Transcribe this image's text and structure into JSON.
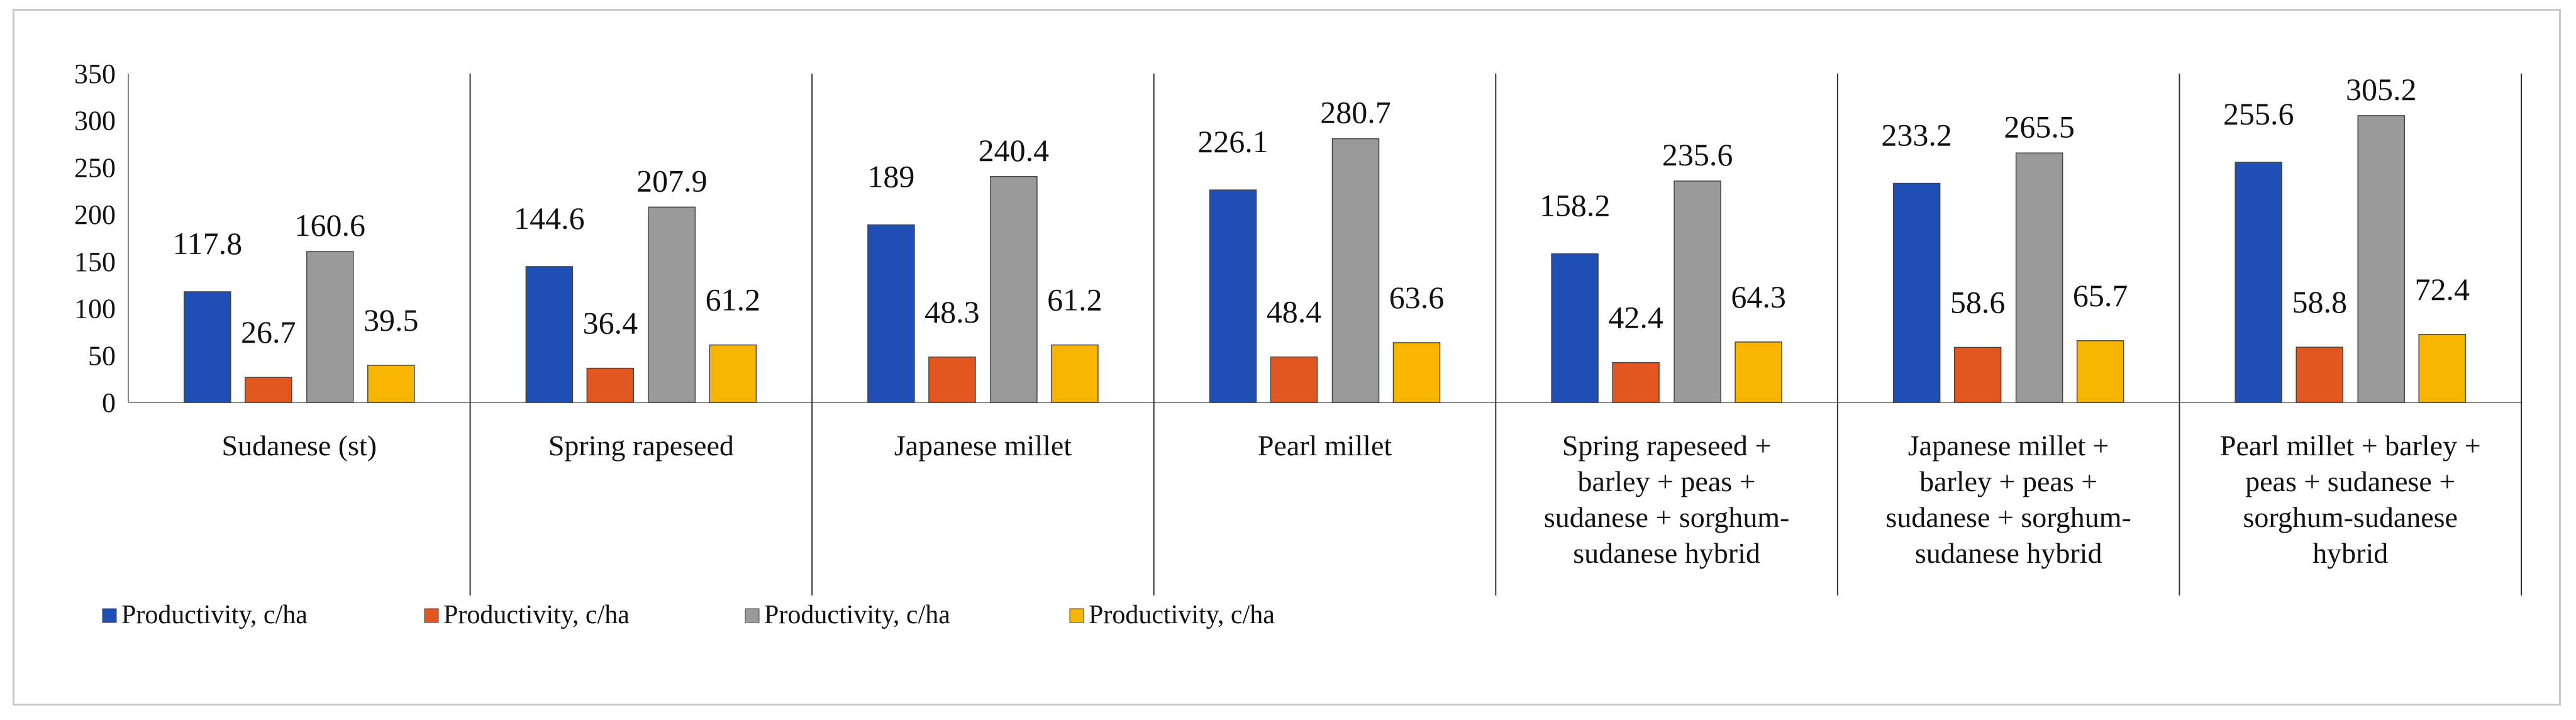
{
  "chart_data": {
    "type": "bar",
    "title": "",
    "xlabel": "",
    "ylabel": "",
    "ylim": [
      0,
      350
    ],
    "yticks": [
      0,
      50,
      100,
      150,
      200,
      250,
      300,
      350
    ],
    "grid": false,
    "legend_position": "bottom-left",
    "categories": [
      [
        "Sudanese (st)"
      ],
      [
        "Spring rapeseed"
      ],
      [
        "Japanese millet"
      ],
      [
        "Pearl millet"
      ],
      [
        "Spring rapeseed +",
        "barley + peas +",
        "sudanese + sorghum-",
        "sudanese hybrid"
      ],
      [
        "Japanese millet +",
        "barley + peas +",
        "sudanese + sorghum-",
        "sudanese hybrid"
      ],
      [
        "Pearl millet + barley +",
        "peas + sudanese +",
        "sorghum-sudanese",
        "hybrid"
      ]
    ],
    "series": [
      {
        "name": "Productivity, c/ha",
        "color": "#1f4fb4",
        "values": [
          117.8,
          144.6,
          189,
          226.1,
          158.2,
          233.2,
          255.6
        ]
      },
      {
        "name": "Productivity, c/ha",
        "color": "#e2561f",
        "values": [
          26.7,
          36.4,
          48.3,
          48.4,
          42.4,
          58.6,
          58.8
        ]
      },
      {
        "name": "Productivity, c/ha",
        "color": "#9a9a9a",
        "values": [
          160.6,
          207.9,
          240.4,
          280.7,
          235.6,
          265.5,
          305.2
        ]
      },
      {
        "name": "Productivity, c/ha",
        "color": "#f7b500",
        "values": [
          39.5,
          61.2,
          61.2,
          63.6,
          64.3,
          65.7,
          72.4
        ]
      }
    ]
  }
}
